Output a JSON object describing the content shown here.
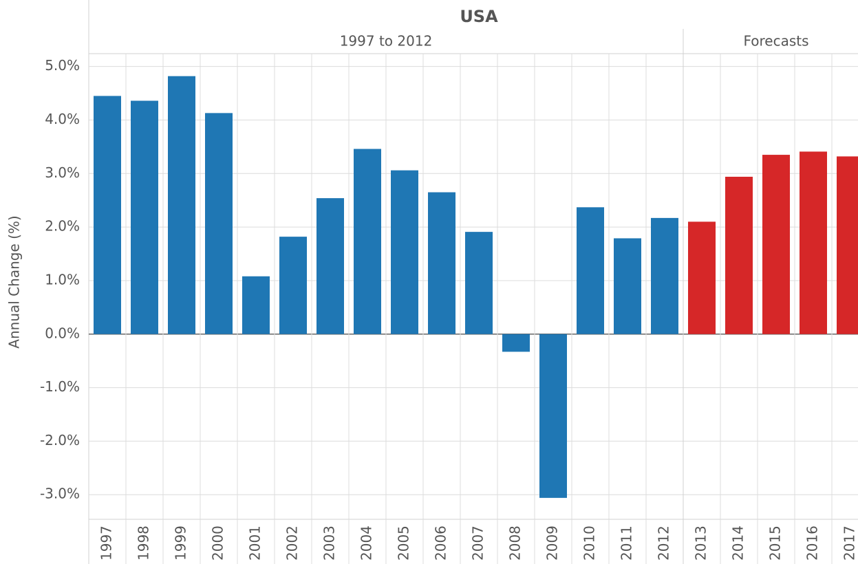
{
  "chart_data": {
    "type": "bar",
    "title": "USA",
    "y_label": "Annual Change (%)",
    "categories": [
      "1997",
      "1998",
      "1999",
      "2000",
      "2001",
      "2002",
      "2003",
      "2004",
      "2005",
      "2006",
      "2007",
      "2008",
      "2009",
      "2010",
      "2011",
      "2012",
      "2013",
      "2014",
      "2015",
      "2016",
      "2017"
    ],
    "series": [
      {
        "name": "1997 to 2012",
        "color": "#1f77b4",
        "values": [
          4.45,
          4.36,
          4.82,
          4.13,
          1.08,
          1.82,
          2.54,
          3.46,
          3.06,
          2.65,
          1.91,
          -0.33,
          -3.06,
          2.37,
          1.79,
          2.17,
          null,
          null,
          null,
          null,
          null
        ]
      },
      {
        "name": "Forecasts",
        "color": "#d62728",
        "values": [
          null,
          null,
          null,
          null,
          null,
          null,
          null,
          null,
          null,
          null,
          null,
          null,
          null,
          null,
          null,
          null,
          2.1,
          2.94,
          3.35,
          3.41,
          3.32
        ]
      }
    ],
    "ylim": [
      -3.46,
      5.24
    ],
    "yticks": [
      {
        "value": -3,
        "label": "-3.0%"
      },
      {
        "value": -2,
        "label": "-2.0%"
      },
      {
        "value": -1,
        "label": "-1.0%"
      },
      {
        "value": 0,
        "label": "0.0%"
      },
      {
        "value": 1,
        "label": "1.0%"
      },
      {
        "value": 2,
        "label": "2.0%"
      },
      {
        "value": 3,
        "label": "3.0%"
      },
      {
        "value": 4,
        "label": "4.0%"
      },
      {
        "value": 5,
        "label": "5.0%"
      }
    ],
    "grid": true
  }
}
